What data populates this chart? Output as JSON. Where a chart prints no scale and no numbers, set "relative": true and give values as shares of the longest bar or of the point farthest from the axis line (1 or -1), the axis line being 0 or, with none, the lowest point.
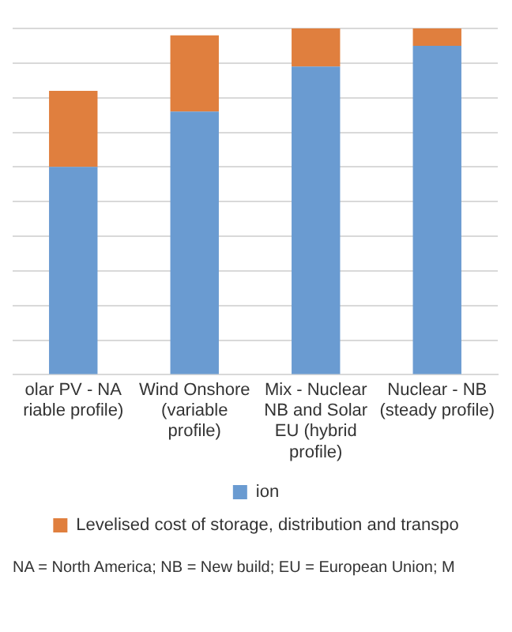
{
  "chart_data": {
    "type": "bar",
    "stacked": true,
    "relative": true,
    "grid": "y",
    "legend": "bottom",
    "categories": [
      "olar PV - NA riable profile)",
      "Wind Onshore (variable profile)",
      "Mix - Nuclear NB and Solar EU (hybrid profile)",
      "Nuclear - NB (steady profile)"
    ],
    "series": [
      {
        "name": "ion",
        "color": "#6a9bd1",
        "values": [
          0.6,
          0.76,
          0.89,
          0.95
        ]
      },
      {
        "name": "Levelised cost of storage, distribution and transpo",
        "color": "#e07f3e",
        "values": [
          0.22,
          0.22,
          0.11,
          0.05
        ]
      }
    ],
    "annotations": [
      "NA = North America; NB = New build; EU = European Union; M"
    ]
  }
}
